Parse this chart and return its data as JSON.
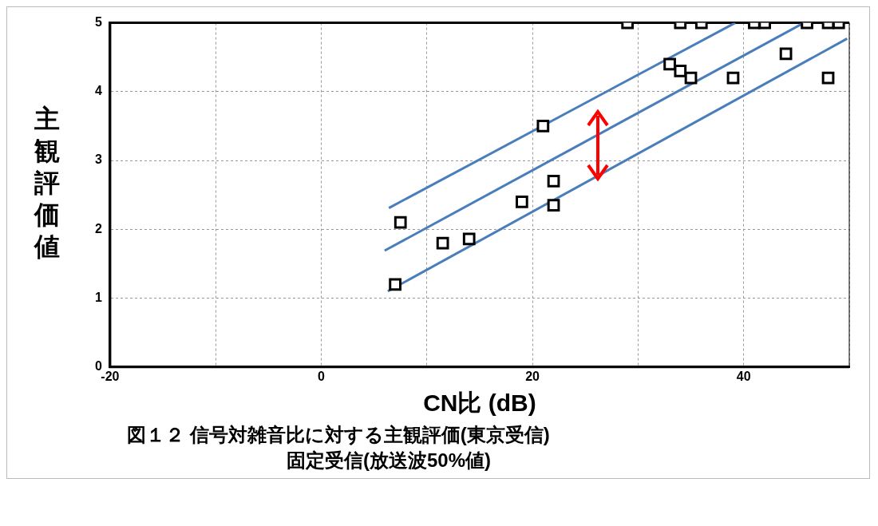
{
  "chart_data": {
    "type": "scatter",
    "title": "図１２ 信号対雑音比に対する主観評価(東京受信)",
    "subtitle": "固定受信(放送波50%値)",
    "xlabel": "CN比 (dB)",
    "ylabel": "主観評価値",
    "xlim": [
      -20,
      50
    ],
    "xticks": [
      -20,
      {
        "value": -10,
        "label": null
      },
      0,
      {
        "value": 10,
        "label": null
      },
      20,
      {
        "value": 30,
        "label": null
      },
      40,
      {
        "value": 50,
        "label": null
      }
    ],
    "ylim": [
      0,
      5
    ],
    "yticks": [
      0,
      1,
      2,
      3,
      4,
      5
    ],
    "grid": true,
    "legend": false,
    "marker": "square",
    "series": [
      {
        "color": "#000000",
        "x": [
          7,
          7.5,
          11.5,
          14,
          19,
          21,
          22,
          22,
          29,
          33,
          34,
          34,
          35,
          36,
          39,
          41,
          42,
          44,
          46,
          48,
          48,
          49
        ],
        "values": [
          1.2,
          2.1,
          1.8,
          1.86,
          2.4,
          3.5,
          2.7,
          2.35,
          5,
          4.4,
          5,
          4.3,
          4.2,
          5,
          4.2,
          5,
          5,
          4.55,
          5,
          5,
          4.2,
          5
        ]
      },
      {
        "type": "line",
        "color": "#4a7ebb",
        "x": [
          6.4,
          39.2
        ],
        "values": [
          2.31,
          5
        ],
        "marker": "none"
      },
      {
        "type": "line",
        "color": "#4a7ebb",
        "x": [
          6,
          45.7
        ],
        "values": [
          1.69,
          5
        ],
        "marker": "none"
      },
      {
        "type": "line",
        "color": "#4a7ebb",
        "x": [
          6.3,
          49.8
        ],
        "values": [
          1.1,
          4.77
        ],
        "marker": "none"
      }
    ]
  }
}
